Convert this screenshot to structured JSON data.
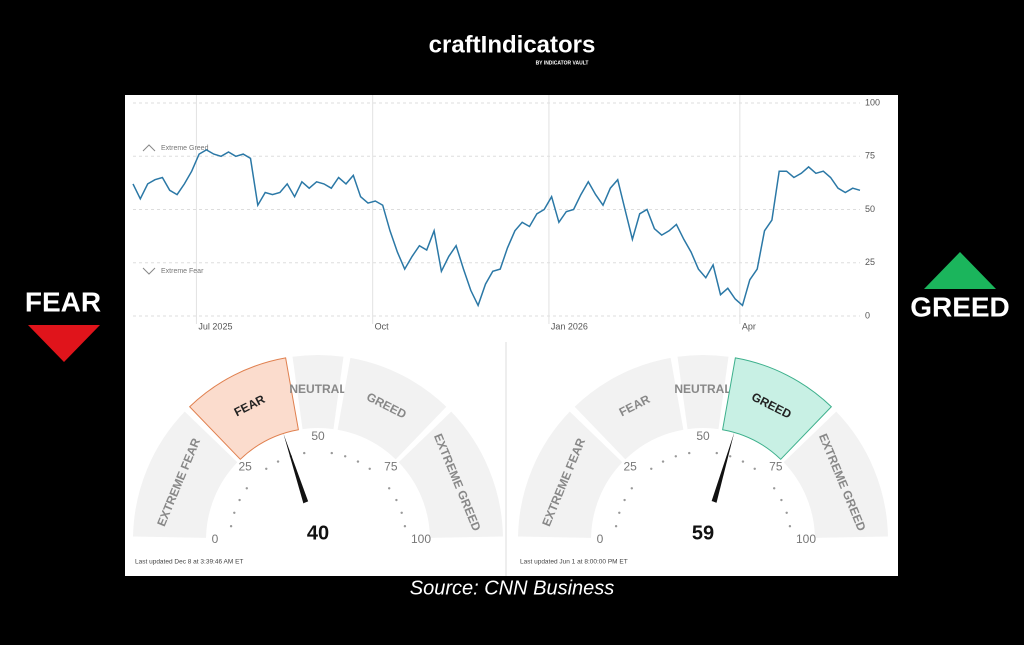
{
  "header": {
    "logo": "craftIndicators",
    "logo_sub": "BY INDICATOR VAULT"
  },
  "side": {
    "left": "FEAR",
    "right": "GREED"
  },
  "source": "Source: CNN Business",
  "chart_data": [
    {
      "type": "line",
      "categories": [
        null,
        null,
        null,
        null,
        null,
        null,
        null,
        null,
        null,
        null,
        "Jul 2025",
        null,
        null,
        null,
        null,
        null,
        null,
        null,
        null,
        null,
        null,
        null,
        null,
        null,
        null,
        null,
        null,
        null,
        null,
        null,
        null,
        null,
        null,
        null,
        "Oct",
        null,
        null,
        null,
        null,
        null,
        null,
        null,
        null,
        null,
        null,
        null,
        null,
        null,
        null,
        null,
        null,
        null,
        null,
        null,
        null,
        null,
        null,
        null,
        "Jan 2026",
        null,
        null,
        null,
        null,
        null,
        null,
        null,
        null,
        null,
        null,
        null,
        null,
        null,
        null,
        null,
        null,
        null,
        null,
        null,
        null,
        null,
        null,
        null,
        null,
        null,
        "Apr",
        null,
        null,
        null,
        null,
        null,
        null,
        null,
        null,
        null,
        null,
        null,
        null,
        null,
        null,
        null
      ],
      "values": [
        62,
        55,
        62,
        64,
        65,
        59,
        57,
        62,
        68,
        76,
        78,
        76,
        75,
        77,
        75,
        76,
        74,
        52,
        58,
        57,
        58,
        62,
        56,
        63,
        60,
        63,
        62,
        60,
        65,
        62,
        66,
        56,
        53,
        54,
        52,
        40,
        30,
        22,
        28,
        33,
        31,
        40,
        21,
        28,
        33,
        22,
        12,
        5,
        15,
        21,
        22,
        32,
        40,
        44,
        42,
        48,
        50,
        56,
        44,
        49,
        50,
        57,
        63,
        57,
        52,
        60,
        64,
        50,
        36,
        48,
        50,
        41,
        38,
        40,
        43,
        36,
        30,
        22,
        18,
        24,
        10,
        13,
        8,
        5,
        17,
        22,
        40,
        45,
        68,
        68,
        65,
        67,
        70,
        67,
        68,
        65,
        60,
        58,
        60,
        59
      ],
      "color": "#2b78a6",
      "ylim": [
        0,
        100
      ],
      "yticks": [
        0,
        25,
        50,
        75,
        100
      ],
      "grid": true,
      "annotations": [
        "Extreme Greed",
        "Extreme Fear"
      ]
    },
    {
      "type": "gauge",
      "value": 40,
      "ticks": [
        0,
        25,
        50,
        75,
        100
      ],
      "bands": [
        0,
        25,
        45,
        55,
        75,
        100
      ],
      "segments": [
        "EXTREME FEAR",
        "FEAR",
        "NEUTRAL",
        "GREED",
        "EXTREME GREED"
      ],
      "highlight_color": "#fbdccd",
      "highlight_stroke": "#e0804f",
      "footnote": "Last updated Dec 8 at 3:39:46 AM ET"
    },
    {
      "type": "gauge",
      "value": 59,
      "ticks": [
        0,
        25,
        50,
        75,
        100
      ],
      "bands": [
        0,
        25,
        45,
        55,
        75,
        100
      ],
      "segments": [
        "EXTREME FEAR",
        "FEAR",
        "NEUTRAL",
        "GREED",
        "EXTREME GREED"
      ],
      "highlight_color": "#c8f0e4",
      "highlight_stroke": "#3db08c",
      "footnote": "Last updated Jun 1 at 8:00:00 PM ET"
    }
  ]
}
